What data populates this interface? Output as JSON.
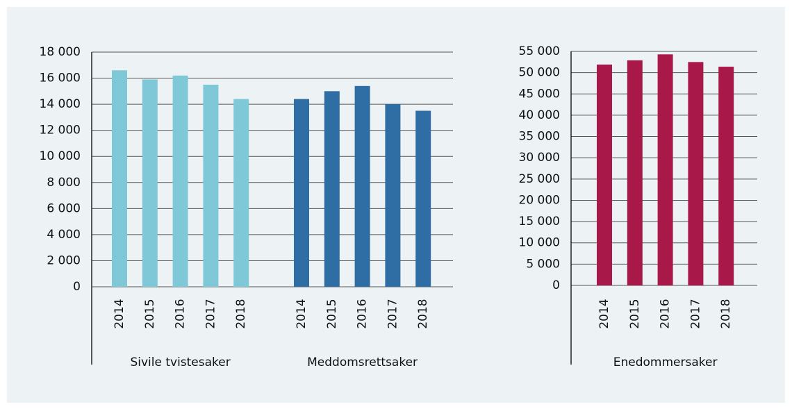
{
  "chart_data": [
    {
      "type": "bar",
      "groups": [
        {
          "name": "Sivile tvistesaker",
          "color": "#7ec8d8",
          "categories": [
            "2014",
            "2015",
            "2016",
            "2017",
            "2018"
          ],
          "values": [
            16600,
            15900,
            16200,
            15500,
            14400
          ]
        },
        {
          "name": "Meddomsrettsaker",
          "color": "#2f6ea5",
          "categories": [
            "2014",
            "2015",
            "2016",
            "2017",
            "2018"
          ],
          "values": [
            14400,
            15000,
            15400,
            14000,
            13500
          ]
        }
      ],
      "ylim": [
        0,
        18000
      ],
      "yticks": [
        0,
        {
          "value": 2000,
          "label": "2 000"
        },
        {
          "value": 4000,
          "label": "4 000"
        },
        {
          "value": 6000,
          "label": "6 000"
        },
        {
          "value": 8000,
          "label": "8 000"
        },
        {
          "value": 10000,
          "label": "10 000"
        },
        {
          "value": 12000,
          "label": "12 000"
        },
        {
          "value": 14000,
          "label": "14 000"
        },
        {
          "value": 16000,
          "label": "16 000"
        },
        {
          "value": 18000,
          "label": "18 000"
        }
      ],
      "grid": true
    },
    {
      "type": "bar",
      "groups": [
        {
          "name": "Enedommersaker",
          "color": "#a8194a",
          "categories": [
            "2014",
            "2015",
            "2016",
            "2017",
            "2018"
          ],
          "values": [
            51900,
            52900,
            54300,
            52500,
            51400
          ]
        }
      ],
      "ylim": [
        0,
        55000
      ],
      "yticks": [
        0,
        {
          "value": 5000,
          "label": "5 000"
        },
        {
          "value": 10000,
          "label": "10 000"
        },
        {
          "value": 15000,
          "label": "15 000"
        },
        {
          "value": 20000,
          "label": "20 000"
        },
        {
          "value": 25000,
          "label": "25 000"
        },
        {
          "value": 30000,
          "label": "30 000"
        },
        {
          "value": 35000,
          "label": "35 000"
        },
        {
          "value": 40000,
          "label": "40 000"
        },
        {
          "value": 45000,
          "label": "45 000"
        },
        {
          "value": 50000,
          "label": "50 000"
        },
        {
          "value": 55000,
          "label": "55 000"
        }
      ],
      "grid": true
    }
  ]
}
